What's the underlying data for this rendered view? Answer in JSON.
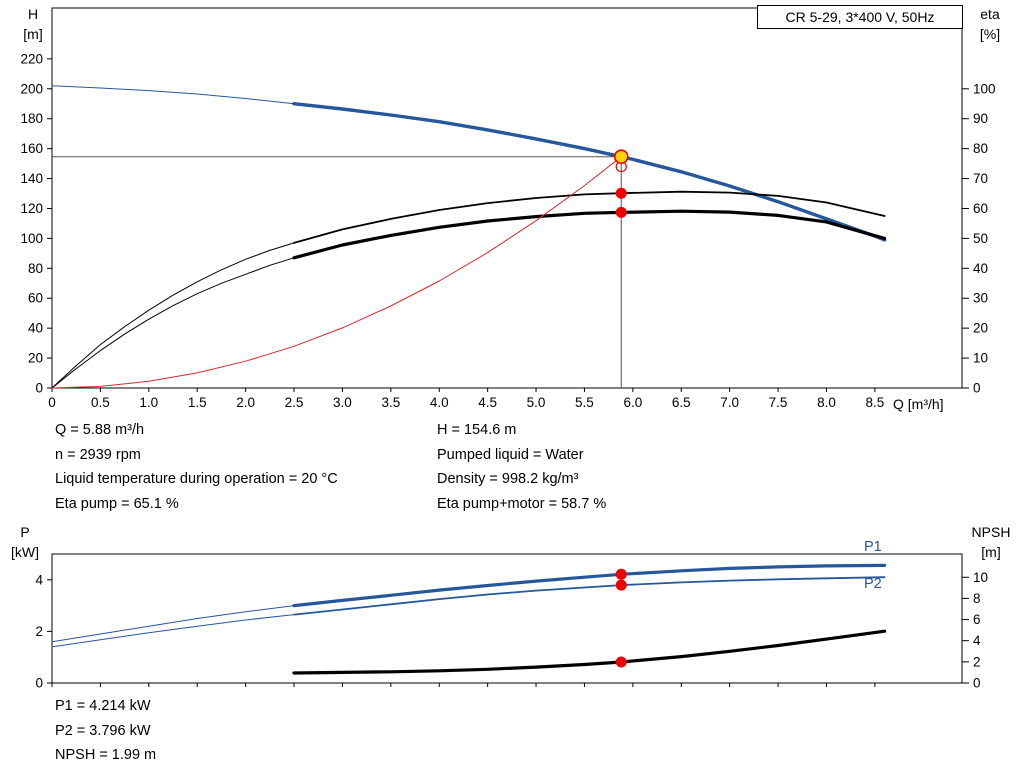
{
  "title_box": "CR 5-29, 3*400 V, 50Hz",
  "info_mid": {
    "left": [
      "Q = 5.88 m³/h",
      "n = 2939 rpm",
      "Liquid temperature during operation = 20 °C",
      "Eta pump = 65.1 %"
    ],
    "right": [
      "H = 154.6 m",
      "Pumped liquid = Water",
      "Density = 998.2 kg/m³",
      "Eta pump+motor = 58.7 %"
    ]
  },
  "info_bottom": [
    "P1 = 4.214 kW",
    "P2 = 3.796 kW",
    "NPSH = 1.99 m"
  ],
  "colors": {
    "blue": "#26569b",
    "black": "#000000",
    "red": "#d92b2b",
    "dot_red": "#ee0000",
    "duty_yellow": "#ffd400",
    "ref_line": "#555555"
  },
  "chart_data": [
    {
      "type": "line",
      "name": "qh-eta-chart",
      "x_axis": {
        "label": "Q [m³/h]",
        "min": 0,
        "max": 9.4,
        "tick_values": [
          0,
          0.5,
          1,
          1.5,
          2,
          2.5,
          3,
          3.5,
          4,
          4.5,
          5,
          5.5,
          6,
          6.5,
          7,
          7.5,
          8,
          8.5
        ],
        "tick_labels": [
          "0",
          "0.5",
          "1.0",
          "1.5",
          "2.0",
          "2.5",
          "3.0",
          "3.5",
          "4.0",
          "4.5",
          "5.0",
          "5.5",
          "6.0",
          "6.5",
          "7.0",
          "7.5",
          "8.0",
          "8.5"
        ]
      },
      "y_left": {
        "label_lines": [
          "H",
          "[m]"
        ],
        "min": 0,
        "max": 254,
        "tick_values": [
          0,
          20,
          40,
          60,
          80,
          100,
          120,
          140,
          160,
          180,
          200,
          220
        ],
        "tick_labels": [
          "0",
          "20",
          "40",
          "60",
          "80",
          "100",
          "120",
          "140",
          "160",
          "180",
          "200",
          "220"
        ]
      },
      "y_right": {
        "label_lines": [
          "eta",
          "[%]"
        ],
        "min": 0,
        "max": 127,
        "tick_values": [
          0,
          10,
          20,
          30,
          40,
          50,
          60,
          70,
          80,
          90,
          100
        ],
        "tick_labels": [
          "0",
          "10",
          "20",
          "30",
          "40",
          "50",
          "60",
          "70",
          "80",
          "90",
          "100"
        ]
      },
      "series": [
        {
          "name": "pump-curve-thin",
          "axis": "left",
          "color": "blue",
          "width": 1,
          "points": [
            [
              0,
              202
            ],
            [
              0.5,
              200.5
            ],
            [
              1,
              198.8
            ],
            [
              1.5,
              196.5
            ],
            [
              2,
              193.5
            ],
            [
              2.5,
              190
            ]
          ]
        },
        {
          "name": "pump-curve",
          "axis": "left",
          "color": "blue",
          "width": 3.4,
          "points": [
            [
              2.5,
              190
            ],
            [
              3,
              186.5
            ],
            [
              3.5,
              182.5
            ],
            [
              4,
              178
            ],
            [
              4.5,
              172.5
            ],
            [
              5,
              166.5
            ],
            [
              5.5,
              160
            ],
            [
              5.88,
              154.6
            ],
            [
              6,
              152.8
            ],
            [
              6.5,
              144.5
            ],
            [
              7,
              135
            ],
            [
              7.5,
              124.5
            ],
            [
              8,
              113
            ],
            [
              8.5,
              101.5
            ],
            [
              8.6,
              99
            ]
          ]
        },
        {
          "name": "eta-pump-curve-thin",
          "axis": "right",
          "color": "black",
          "width": 1,
          "points": [
            [
              0,
              0
            ],
            [
              0.25,
              7.5
            ],
            [
              0.5,
              14.5
            ],
            [
              0.75,
              20.5
            ],
            [
              1,
              26
            ],
            [
              1.25,
              31
            ],
            [
              1.5,
              35.5
            ],
            [
              1.75,
              39.5
            ],
            [
              2,
              43
            ],
            [
              2.25,
              46
            ],
            [
              2.5,
              48.5
            ]
          ]
        },
        {
          "name": "eta-pump-curve",
          "axis": "right",
          "color": "black",
          "width": 1.8,
          "points": [
            [
              2.5,
              48.5
            ],
            [
              3,
              53
            ],
            [
              3.5,
              56.5
            ],
            [
              4,
              59.5
            ],
            [
              4.5,
              61.8
            ],
            [
              5,
              63.5
            ],
            [
              5.5,
              64.7
            ],
            [
              5.88,
              65.1
            ],
            [
              6.5,
              65.6
            ],
            [
              7,
              65.3
            ],
            [
              7.5,
              64.2
            ],
            [
              8,
              62
            ],
            [
              8.6,
              57.5
            ]
          ]
        },
        {
          "name": "eta-pump-motor-curve-thin",
          "axis": "right",
          "color": "black",
          "width": 1,
          "points": [
            [
              0,
              0
            ],
            [
              0.25,
              6.5
            ],
            [
              0.5,
              12.5
            ],
            [
              0.75,
              18
            ],
            [
              1,
              23
            ],
            [
              1.25,
              27.5
            ],
            [
              1.5,
              31.5
            ],
            [
              1.75,
              35
            ],
            [
              2,
              38
            ],
            [
              2.25,
              41
            ],
            [
              2.5,
              43.5
            ]
          ]
        },
        {
          "name": "eta-pump-motor-curve",
          "axis": "right",
          "color": "black",
          "width": 3.2,
          "points": [
            [
              2.5,
              43.5
            ],
            [
              3,
              47.8
            ],
            [
              3.5,
              51
            ],
            [
              4,
              53.7
            ],
            [
              4.5,
              55.8
            ],
            [
              5,
              57.3
            ],
            [
              5.5,
              58.4
            ],
            [
              5.88,
              58.7
            ],
            [
              6.5,
              59.1
            ],
            [
              7,
              58.8
            ],
            [
              7.5,
              57.7
            ],
            [
              8,
              55.5
            ],
            [
              8.6,
              50
            ]
          ]
        },
        {
          "name": "system-curve",
          "axis": "left",
          "color": "red",
          "width": 1,
          "points": [
            [
              0,
              0
            ],
            [
              0.5,
              1.1
            ],
            [
              1,
              4.5
            ],
            [
              1.5,
              10.1
            ],
            [
              2,
              17.9
            ],
            [
              2.5,
              27.9
            ],
            [
              3,
              40.2
            ],
            [
              3.5,
              54.8
            ],
            [
              4,
              71.5
            ],
            [
              4.5,
              90.5
            ],
            [
              5,
              111.8
            ],
            [
              5.5,
              135.3
            ],
            [
              5.88,
              154.6
            ]
          ]
        }
      ],
      "reference_lines": [
        {
          "name": "duty-head-line",
          "type": "h",
          "value": 154.6,
          "axis": "left",
          "x_from": 0,
          "x_to": 5.88
        },
        {
          "name": "duty-flow-line",
          "type": "v",
          "value": 5.88,
          "axis": "left",
          "y_from": 0,
          "y_to": 154.6
        }
      ],
      "markers": [
        {
          "name": "system-intersect-ring",
          "x": 5.88,
          "y": 148,
          "axis": "left",
          "style": "ring"
        },
        {
          "name": "duty-point",
          "x": 5.88,
          "y": 154.6,
          "axis": "left",
          "style": "duty"
        },
        {
          "name": "eta-pump-point",
          "x": 5.88,
          "y": 65.1,
          "axis": "right",
          "style": "dot"
        },
        {
          "name": "eta-pump-motor-point",
          "x": 5.88,
          "y": 58.7,
          "axis": "right",
          "style": "dot"
        }
      ]
    },
    {
      "type": "line",
      "name": "power-npsh-chart",
      "series_labels": {
        "p1": "P1",
        "p2": "P2"
      },
      "x_axis": {
        "label": "",
        "min": 0,
        "max": 9.4,
        "tick_values": [
          0,
          0.5,
          1,
          1.5,
          2,
          2.5,
          3,
          3.5,
          4,
          4.5,
          5,
          5.5,
          6,
          6.5,
          7,
          7.5,
          8,
          8.5
        ],
        "tick_labels": []
      },
      "y_left": {
        "label_lines": [
          "P",
          "[kW]"
        ],
        "min": 0,
        "max": 5,
        "tick_values": [
          0,
          2,
          4
        ],
        "tick_labels": [
          "0",
          "2",
          "4"
        ]
      },
      "y_right": {
        "label_lines": [
          "NPSH",
          "[m]"
        ],
        "min": 0,
        "max": 12.2,
        "tick_values": [
          0,
          2,
          4,
          6,
          8,
          10
        ],
        "tick_labels": [
          "0",
          "2",
          "4",
          "6",
          "8",
          "10"
        ]
      },
      "series": [
        {
          "name": "p1-curve-thin",
          "axis": "left",
          "color": "blue",
          "width": 1,
          "points": [
            [
              0,
              1.6
            ],
            [
              0.5,
              1.9
            ],
            [
              1,
              2.2
            ],
            [
              1.5,
              2.5
            ],
            [
              2,
              2.76
            ],
            [
              2.5,
              3.0
            ]
          ]
        },
        {
          "name": "p1-curve",
          "axis": "left",
          "color": "blue",
          "width": 3.2,
          "points": [
            [
              2.5,
              3.0
            ],
            [
              3,
              3.2
            ],
            [
              3.5,
              3.4
            ],
            [
              4,
              3.6
            ],
            [
              4.5,
              3.78
            ],
            [
              5,
              3.95
            ],
            [
              5.5,
              4.1
            ],
            [
              5.88,
              4.214
            ],
            [
              6.5,
              4.35
            ],
            [
              7,
              4.44
            ],
            [
              7.5,
              4.5
            ],
            [
              8,
              4.54
            ],
            [
              8.6,
              4.56
            ]
          ]
        },
        {
          "name": "p2-curve-thin",
          "axis": "left",
          "color": "blue",
          "width": 1,
          "points": [
            [
              0,
              1.4
            ],
            [
              0.5,
              1.68
            ],
            [
              1,
              1.95
            ],
            [
              1.5,
              2.2
            ],
            [
              2,
              2.44
            ],
            [
              2.5,
              2.65
            ]
          ]
        },
        {
          "name": "p2-curve",
          "axis": "left",
          "color": "blue",
          "width": 1.8,
          "points": [
            [
              2.5,
              2.65
            ],
            [
              3,
              2.85
            ],
            [
              3.5,
              3.05
            ],
            [
              4,
              3.25
            ],
            [
              4.5,
              3.43
            ],
            [
              5,
              3.58
            ],
            [
              5.5,
              3.7
            ],
            [
              5.88,
              3.796
            ],
            [
              6.5,
              3.9
            ],
            [
              7,
              3.97
            ],
            [
              7.5,
              4.02
            ],
            [
              8,
              4.06
            ],
            [
              8.6,
              4.1
            ]
          ]
        },
        {
          "name": "npsh-curve",
          "axis": "right",
          "color": "black",
          "width": 3.2,
          "points": [
            [
              2.5,
              0.95
            ],
            [
              3,
              1.0
            ],
            [
              3.5,
              1.06
            ],
            [
              4,
              1.15
            ],
            [
              4.5,
              1.3
            ],
            [
              5,
              1.5
            ],
            [
              5.5,
              1.75
            ],
            [
              5.88,
              1.99
            ],
            [
              6.5,
              2.5
            ],
            [
              7,
              3.0
            ],
            [
              7.5,
              3.55
            ],
            [
              8,
              4.15
            ],
            [
              8.6,
              4.9
            ]
          ]
        }
      ],
      "reference_lines": [],
      "markers": [
        {
          "name": "p1-point",
          "x": 5.88,
          "y": 4.214,
          "axis": "left",
          "style": "dot"
        },
        {
          "name": "p2-point",
          "x": 5.88,
          "y": 3.796,
          "axis": "left",
          "style": "dot"
        },
        {
          "name": "npsh-point",
          "x": 5.88,
          "y": 1.99,
          "axis": "right",
          "style": "dot"
        }
      ]
    }
  ]
}
